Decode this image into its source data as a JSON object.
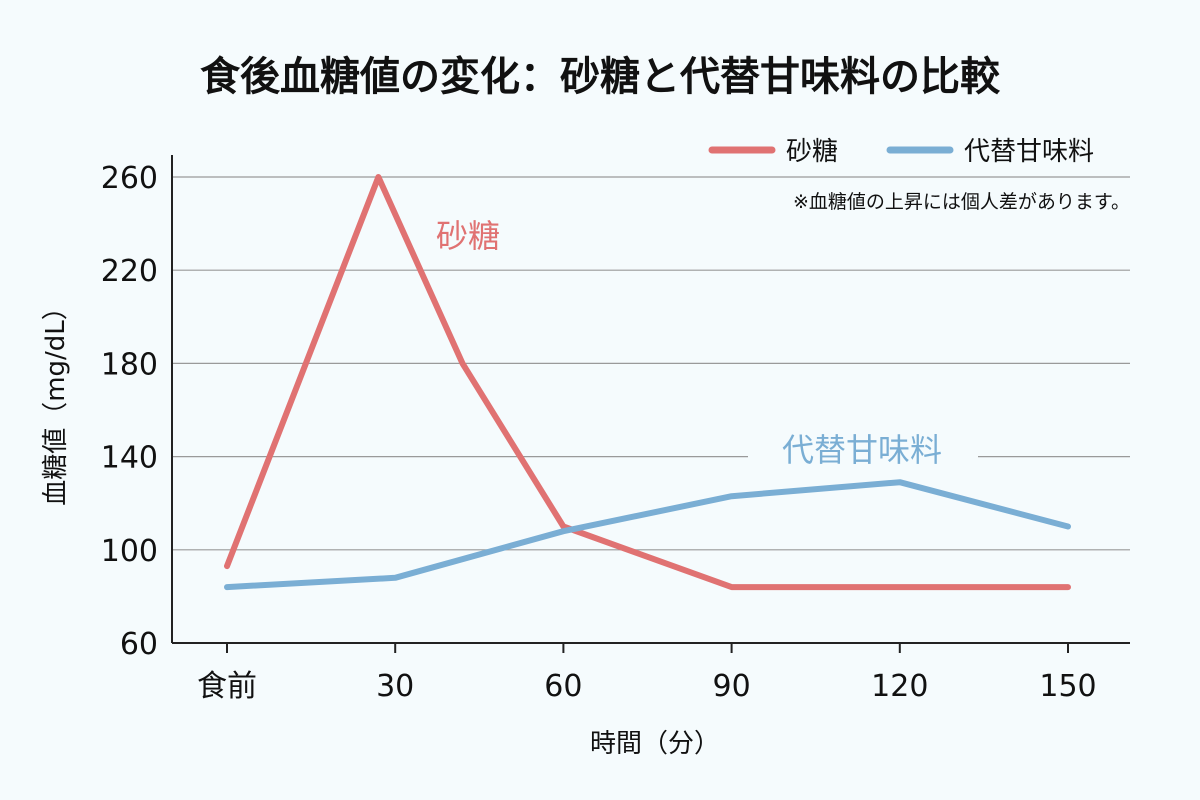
{
  "chart_data": {
    "type": "line",
    "title": "食後血糖値の変化：砂糖と代替甘味料の比較",
    "xlabel": "時間（分）",
    "ylabel": "血糖値（mg/dL）",
    "categories": [
      "食前",
      "30",
      "60",
      "90",
      "120",
      "150"
    ],
    "ylim": [
      60,
      270
    ],
    "yticks": [
      60,
      100,
      140,
      180,
      220,
      260
    ],
    "grid": true,
    "legend_position": "top-right",
    "note": "※血糖値の上昇には個人差があります。",
    "series": [
      {
        "name": "砂糖",
        "color": "#e07272",
        "x": [
          0,
          27,
          42,
          60,
          90,
          120,
          150
        ],
        "y": [
          93,
          260,
          180,
          110,
          84,
          84,
          84
        ]
      },
      {
        "name": "代替甘味料",
        "color": "#7aaed4",
        "x": [
          0,
          30,
          60,
          90,
          120,
          150
        ],
        "y": [
          84,
          88,
          108,
          123,
          129,
          110
        ]
      }
    ]
  }
}
